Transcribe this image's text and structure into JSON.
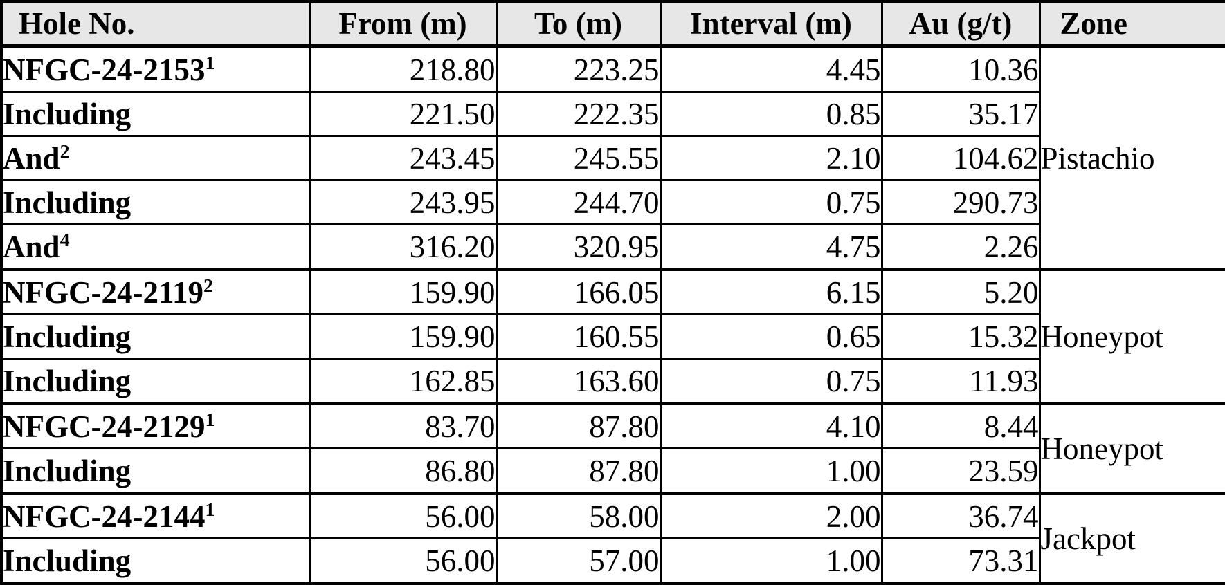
{
  "colors": {
    "header_bg": "#E7E7E7",
    "border": "#000000",
    "text": "#000000",
    "row_bg": "#FFFFFF"
  },
  "table": {
    "columns": [
      {
        "label": "Hole No."
      },
      {
        "label": "From (m)"
      },
      {
        "label": "To (m)"
      },
      {
        "label": "Interval (m)"
      },
      {
        "label": "Au (g/t)"
      },
      {
        "label": "Zone"
      }
    ],
    "groups": [
      {
        "zone": "Pistachio",
        "rows": [
          {
            "hole": "NFGC-24-2153",
            "sup": "1",
            "from": "218.80",
            "to": "223.25",
            "interval": "4.45",
            "au": "10.36"
          },
          {
            "hole": "Including",
            "sup": "",
            "from": "221.50",
            "to": "222.35",
            "interval": "0.85",
            "au": "35.17"
          },
          {
            "hole": "And",
            "sup": "2",
            "from": "243.45",
            "to": "245.55",
            "interval": "2.10",
            "au": "104.62"
          },
          {
            "hole": "Including",
            "sup": "",
            "from": "243.95",
            "to": "244.70",
            "interval": "0.75",
            "au": "290.73"
          },
          {
            "hole": "And",
            "sup": "4",
            "from": "316.20",
            "to": "320.95",
            "interval": "4.75",
            "au": "2.26"
          }
        ]
      },
      {
        "zone": "Honeypot",
        "rows": [
          {
            "hole": "NFGC-24-2119",
            "sup": "2",
            "from": "159.90",
            "to": "166.05",
            "interval": "6.15",
            "au": "5.20"
          },
          {
            "hole": "Including",
            "sup": "",
            "from": "159.90",
            "to": "160.55",
            "interval": "0.65",
            "au": "15.32"
          },
          {
            "hole": "Including",
            "sup": "",
            "from": "162.85",
            "to": "163.60",
            "interval": "0.75",
            "au": "11.93"
          }
        ]
      },
      {
        "zone": "Honeypot",
        "rows": [
          {
            "hole": "NFGC-24-2129",
            "sup": "1",
            "from": "83.70",
            "to": "87.80",
            "interval": "4.10",
            "au": "8.44"
          },
          {
            "hole": "Including",
            "sup": "",
            "from": "86.80",
            "to": "87.80",
            "interval": "1.00",
            "au": "23.59"
          }
        ]
      },
      {
        "zone": "Jackpot",
        "rows": [
          {
            "hole": "NFGC-24-2144",
            "sup": "1",
            "from": "56.00",
            "to": "58.00",
            "interval": "2.00",
            "au": "36.74"
          },
          {
            "hole": "Including",
            "sup": "",
            "from": "56.00",
            "to": "57.00",
            "interval": "1.00",
            "au": "73.31"
          }
        ]
      }
    ]
  }
}
